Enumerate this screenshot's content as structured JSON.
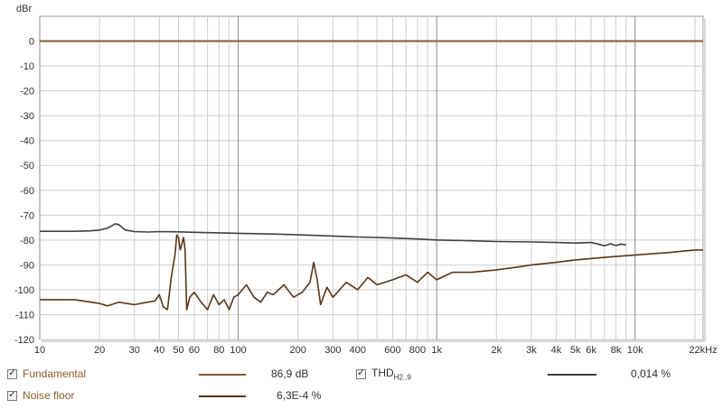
{
  "chart_data": {
    "type": "line",
    "ylabel": "dBr",
    "xlim": [
      10,
      22000
    ],
    "ylim": [
      -120,
      10
    ],
    "x_scale": "log",
    "grid": true,
    "y_ticks": [
      "0",
      "-10",
      "-20",
      "-30",
      "-40",
      "-50",
      "-60",
      "-70",
      "-80",
      "-90",
      "-100",
      "-110",
      "-120"
    ],
    "y_tick_values": [
      0,
      -10,
      -20,
      -30,
      -40,
      -50,
      -60,
      -70,
      -80,
      -90,
      -100,
      -110,
      -120
    ],
    "x_tick_labels": [
      "10",
      "20",
      "30",
      "40",
      "50",
      "60",
      "80",
      "100",
      "200",
      "300",
      "400",
      "600",
      "800",
      "1k",
      "2k",
      "3k",
      "4k",
      "5k",
      "6k",
      "8k",
      "10k",
      "22kHz"
    ],
    "x_tick_values": [
      10,
      20,
      30,
      40,
      50,
      60,
      80,
      100,
      200,
      300,
      400,
      600,
      800,
      1000,
      2000,
      3000,
      4000,
      5000,
      6000,
      8000,
      10000,
      22000
    ],
    "series": [
      {
        "name": "Fundamental",
        "color": "#8b5a2b",
        "points": [
          [
            10,
            0
          ],
          [
            22000,
            0
          ]
        ]
      },
      {
        "name": "THD",
        "color": "#404040",
        "points": [
          [
            10,
            -76.5
          ],
          [
            15,
            -76.5
          ],
          [
            18,
            -76.3
          ],
          [
            20,
            -76.0
          ],
          [
            22,
            -75.2
          ],
          [
            24,
            -73.5
          ],
          [
            25,
            -73.8
          ],
          [
            27,
            -76.0
          ],
          [
            30,
            -76.6
          ],
          [
            35,
            -76.8
          ],
          [
            40,
            -76.6
          ],
          [
            50,
            -76.7
          ],
          [
            60,
            -76.9
          ],
          [
            80,
            -77.1
          ],
          [
            100,
            -77.3
          ],
          [
            150,
            -77.6
          ],
          [
            200,
            -77.9
          ],
          [
            300,
            -78.4
          ],
          [
            400,
            -78.8
          ],
          [
            600,
            -79.2
          ],
          [
            800,
            -79.6
          ],
          [
            1000,
            -80.0
          ],
          [
            1500,
            -80.3
          ],
          [
            2000,
            -80.6
          ],
          [
            3000,
            -80.8
          ],
          [
            4000,
            -81.0
          ],
          [
            5000,
            -81.2
          ],
          [
            6000,
            -81.0
          ],
          [
            6500,
            -81.6
          ],
          [
            7000,
            -82.3
          ],
          [
            7500,
            -81.5
          ],
          [
            8000,
            -82.2
          ],
          [
            8500,
            -81.6
          ],
          [
            9000,
            -82.0
          ]
        ]
      },
      {
        "name": "Noise floor",
        "color": "#5a3618",
        "points": [
          [
            10,
            -104
          ],
          [
            15,
            -104
          ],
          [
            20,
            -105.5
          ],
          [
            22,
            -106.5
          ],
          [
            25,
            -105
          ],
          [
            30,
            -106
          ],
          [
            35,
            -105
          ],
          [
            38,
            -104.5
          ],
          [
            40,
            -102
          ],
          [
            42,
            -107
          ],
          [
            44,
            -108
          ],
          [
            46,
            -95
          ],
          [
            48,
            -86
          ],
          [
            49,
            -78
          ],
          [
            50,
            -79
          ],
          [
            51,
            -84
          ],
          [
            53,
            -79
          ],
          [
            54,
            -84
          ],
          [
            55,
            -108
          ],
          [
            57,
            -103
          ],
          [
            60,
            -101
          ],
          [
            65,
            -105
          ],
          [
            70,
            -108
          ],
          [
            75,
            -102
          ],
          [
            80,
            -106
          ],
          [
            85,
            -104
          ],
          [
            90,
            -108
          ],
          [
            95,
            -103
          ],
          [
            100,
            -102
          ],
          [
            110,
            -98
          ],
          [
            120,
            -103
          ],
          [
            130,
            -105
          ],
          [
            140,
            -101
          ],
          [
            150,
            -102
          ],
          [
            170,
            -98
          ],
          [
            190,
            -103
          ],
          [
            210,
            -101
          ],
          [
            230,
            -97
          ],
          [
            240,
            -89
          ],
          [
            250,
            -96
          ],
          [
            260,
            -106
          ],
          [
            280,
            -99
          ],
          [
            300,
            -103
          ],
          [
            350,
            -97
          ],
          [
            400,
            -100
          ],
          [
            450,
            -95
          ],
          [
            500,
            -98
          ],
          [
            600,
            -96
          ],
          [
            700,
            -94
          ],
          [
            800,
            -97
          ],
          [
            900,
            -93
          ],
          [
            1000,
            -96
          ],
          [
            1200,
            -93
          ],
          [
            1500,
            -93
          ],
          [
            2000,
            -92
          ],
          [
            2500,
            -91
          ],
          [
            3000,
            -90
          ],
          [
            4000,
            -89
          ],
          [
            5000,
            -88
          ],
          [
            7000,
            -87
          ],
          [
            10000,
            -86
          ],
          [
            15000,
            -85
          ],
          [
            20000,
            -84
          ],
          [
            22000,
            -84
          ]
        ]
      }
    ]
  },
  "legend": [
    {
      "label": "Fundamental",
      "value": "86,9 dB",
      "checked": "✓",
      "color": "#8b5a2b"
    },
    {
      "label": "THD",
      "sub": "H2..9",
      "value": "0,014 %",
      "checked": "✓",
      "color": "#404040"
    },
    {
      "label": "Noise floor",
      "value": "6,3E-4 %",
      "checked": "✓",
      "color": "#5a3618"
    }
  ],
  "colors": {
    "fundamental": "#8b5a2b",
    "thd": "#404040",
    "noise": "#5a3618",
    "legend_text": "#8b5a2b",
    "grid": "#cfcfcf",
    "grid_major": "#8a8a8a"
  }
}
